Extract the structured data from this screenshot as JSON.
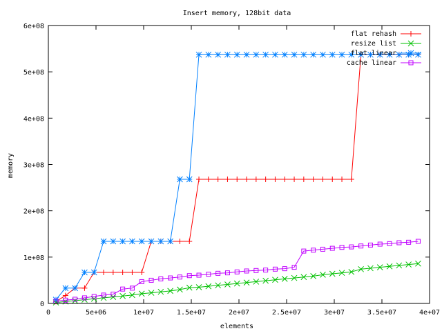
{
  "chart_data": {
    "type": "line",
    "title": "Insert memory, 128bit data",
    "xlabel": "elements",
    "ylabel": "memory",
    "xlim": [
      0,
      40000000
    ],
    "ylim": [
      0,
      600000000
    ],
    "xticks": [
      0,
      5000000,
      10000000,
      15000000,
      20000000,
      25000000,
      30000000,
      35000000,
      40000000
    ],
    "xtick_labels": [
      "0",
      "5e+06",
      "1e+07",
      "1.5e+07",
      "2e+07",
      "2.5e+07",
      "3e+07",
      "3.5e+07",
      "4e+07"
    ],
    "yticks": [
      0,
      100000000,
      200000000,
      300000000,
      400000000,
      500000000,
      600000000
    ],
    "ytick_labels": [
      "0",
      "1e+08",
      "2e+08",
      "3e+08",
      "4e+08",
      "5e+08",
      "6e+08"
    ],
    "grid": false,
    "legend_position": "top-right",
    "x": [
      800000,
      1800000,
      2800000,
      3800000,
      4800000,
      5800000,
      6800000,
      7800000,
      8800000,
      9800000,
      10800000,
      11800000,
      12800000,
      13800000,
      14800000,
      15800000,
      16800000,
      17800000,
      18800000,
      19800000,
      20800000,
      21800000,
      22800000,
      23800000,
      24800000,
      25800000,
      26800000,
      27800000,
      28800000,
      29800000,
      30800000,
      31800000,
      32800000,
      33800000,
      34800000,
      35800000,
      36800000,
      37800000,
      38800000
    ],
    "series": [
      {
        "name": "flat rehash",
        "color": "#ff0000",
        "marker": "plus",
        "values": [
          4000000,
          17000000,
          33000000,
          33000000,
          67000000,
          67000000,
          67000000,
          67000000,
          67000000,
          67000000,
          134000000,
          134000000,
          134000000,
          134000000,
          134000000,
          268000000,
          268000000,
          268000000,
          268000000,
          268000000,
          268000000,
          268000000,
          268000000,
          268000000,
          268000000,
          268000000,
          268000000,
          268000000,
          268000000,
          268000000,
          268000000,
          268000000,
          537000000,
          537000000,
          537000000,
          537000000,
          537000000,
          537000000,
          537000000
        ]
      },
      {
        "name": "resize list",
        "color": "#00c000",
        "marker": "cross",
        "values": [
          2000000,
          4000000,
          6000000,
          8000000,
          10000000,
          12000000,
          14000000,
          16000000,
          18000000,
          21000000,
          23000000,
          25000000,
          27000000,
          30000000,
          34000000,
          35000000,
          37000000,
          39000000,
          41000000,
          43000000,
          45000000,
          47000000,
          49000000,
          51000000,
          53000000,
          55000000,
          57000000,
          59000000,
          62000000,
          64000000,
          66000000,
          68000000,
          74000000,
          76000000,
          78000000,
          80000000,
          82000000,
          84000000,
          86000000
        ]
      },
      {
        "name": "flat linear",
        "color": "#0080ff",
        "marker": "star",
        "values": [
          8000000,
          33000000,
          33000000,
          67000000,
          67000000,
          134000000,
          134000000,
          134000000,
          134000000,
          134000000,
          134000000,
          134000000,
          134000000,
          268000000,
          268000000,
          537000000,
          537000000,
          537000000,
          537000000,
          537000000,
          537000000,
          537000000,
          537000000,
          537000000,
          537000000,
          537000000,
          537000000,
          537000000,
          537000000,
          537000000,
          537000000,
          537000000,
          537000000,
          537000000,
          537000000,
          537000000,
          537000000,
          537000000,
          537000000
        ]
      },
      {
        "name": "cache linear",
        "color": "#c000ff",
        "marker": "square",
        "values": [
          5000000,
          7000000,
          9000000,
          12000000,
          15000000,
          18000000,
          20000000,
          31000000,
          33000000,
          47000000,
          50000000,
          53000000,
          55000000,
          57000000,
          60000000,
          61000000,
          63000000,
          65000000,
          66000000,
          68000000,
          70000000,
          71000000,
          72000000,
          74000000,
          75000000,
          78000000,
          113000000,
          115000000,
          117000000,
          119000000,
          121000000,
          122000000,
          124000000,
          126000000,
          128000000,
          129000000,
          131000000,
          132000000,
          134000000
        ]
      }
    ]
  }
}
